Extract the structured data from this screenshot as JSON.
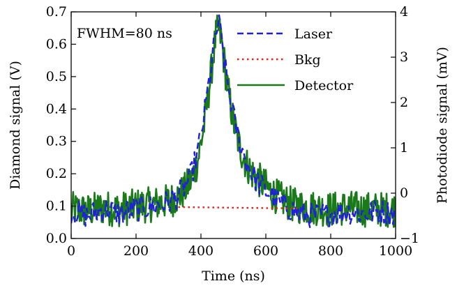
{
  "chart_data": {
    "type": "line",
    "annotation": "FWHM=80 ns",
    "xlabel": "Time (ns)",
    "ylabel": "Diamond signal (V)",
    "ylabel_right": "Photodiode signal (mV)",
    "xlim": [
      0,
      1000
    ],
    "ylim": [
      0.0,
      0.7
    ],
    "ylim_right": [
      -1,
      4
    ],
    "x_ticks": [
      "0",
      "200",
      "400",
      "600",
      "800",
      "1000"
    ],
    "y_ticks": [
      "0.0",
      "0.1",
      "0.2",
      "0.3",
      "0.4",
      "0.5",
      "0.6",
      "0.7"
    ],
    "y_right_ticks": [
      "−1",
      "0",
      "1",
      "2",
      "3",
      "4"
    ],
    "grid": false,
    "legend_position": "top-right",
    "series": [
      {
        "name": "Laser",
        "axis": "right",
        "style": "dashed",
        "color": "#1f1fdd",
        "x": [
          0,
          50,
          100,
          150,
          200,
          250,
          300,
          330,
          350,
          370,
          390,
          410,
          430,
          445,
          455,
          465,
          480,
          500,
          520,
          540,
          560,
          580,
          600,
          620,
          640,
          660,
          680,
          700,
          750,
          800,
          850,
          900,
          950,
          1000
        ],
        "y": [
          -0.4,
          -0.5,
          -0.35,
          -0.45,
          -0.35,
          -0.3,
          -0.2,
          -0.05,
          0.15,
          0.4,
          0.9,
          1.7,
          2.7,
          3.5,
          3.75,
          3.3,
          2.5,
          1.7,
          1.1,
          0.7,
          0.4,
          0.2,
          0.05,
          -0.05,
          -0.2,
          -0.3,
          -0.35,
          -0.45,
          -0.5,
          -0.45,
          -0.4,
          -0.45,
          -0.4,
          -0.45
        ]
      },
      {
        "name": "Bkg",
        "axis": "left",
        "style": "dotted",
        "color": "#e8201a",
        "x": [
          330,
          420,
          500,
          600,
          700
        ],
        "y": [
          0.097,
          0.096,
          0.095,
          0.094,
          0.093
        ]
      },
      {
        "name": "Detector",
        "axis": "left",
        "style": "solid",
        "color": "#1a7a1a",
        "x": [
          0,
          50,
          100,
          150,
          200,
          250,
          300,
          330,
          350,
          370,
          390,
          410,
          430,
          445,
          455,
          465,
          480,
          500,
          520,
          540,
          560,
          580,
          600,
          620,
          640,
          660,
          680,
          700,
          750,
          800,
          850,
          900,
          950,
          1000
        ],
        "y": [
          0.09,
          0.085,
          0.095,
          0.09,
          0.1,
          0.105,
          0.115,
          0.13,
          0.15,
          0.18,
          0.24,
          0.35,
          0.5,
          0.62,
          0.65,
          0.6,
          0.48,
          0.36,
          0.28,
          0.23,
          0.2,
          0.18,
          0.16,
          0.14,
          0.125,
          0.115,
          0.105,
          0.1,
          0.095,
          0.09,
          0.095,
          0.09,
          0.09,
          0.09
        ]
      }
    ]
  }
}
